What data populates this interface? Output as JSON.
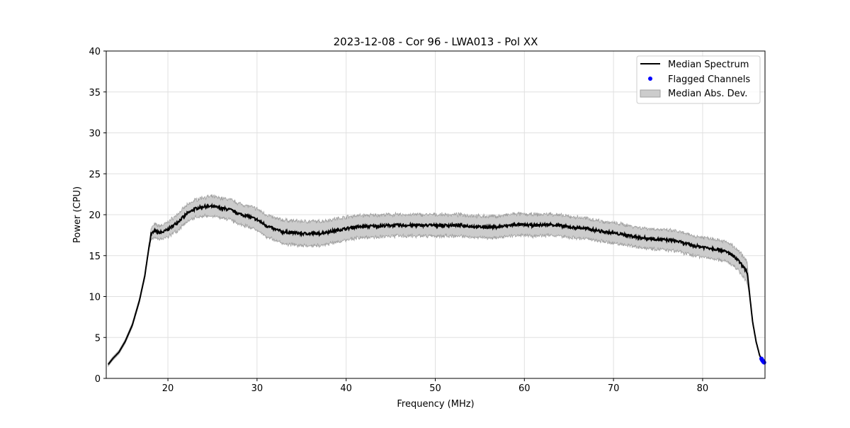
{
  "chart_data": {
    "type": "line",
    "title": "2023-12-08 - Cor 96 - LWA013 - Pol XX",
    "xlabel": "Frequency (MHz)",
    "ylabel": "Power (CPU)",
    "xlim": [
      13.08,
      87.0
    ],
    "ylim": [
      0,
      40
    ],
    "xticks": [
      20,
      30,
      40,
      50,
      60,
      70,
      80
    ],
    "yticks": [
      0,
      5,
      10,
      15,
      20,
      25,
      30,
      35,
      40
    ],
    "grid": true,
    "legend_position": "top-right",
    "legend": [
      "Median Spectrum",
      "Flagged Channels",
      "Median Abs. Dev."
    ],
    "colors": {
      "median": "#000000",
      "flagged": "#0000ff",
      "mad_fill": "#cccccc",
      "mad_edge": "#a0a0a0"
    },
    "series": [
      {
        "name": "Median Spectrum",
        "x": [
          13.3,
          13.8,
          14.5,
          15.2,
          16,
          16.8,
          17.4,
          17.8,
          18.1,
          18.5,
          19,
          19.5,
          20,
          21,
          22,
          23,
          24,
          25,
          26,
          27,
          28,
          29,
          30,
          31,
          32,
          33,
          35,
          37,
          39,
          41,
          43,
          45,
          50,
          53,
          55,
          57,
          59,
          61,
          63,
          65,
          67,
          69,
          71,
          73,
          75,
          77,
          79,
          81,
          82,
          83,
          84,
          85,
          85.3,
          85.6,
          86,
          86.4,
          86.8
        ],
        "y": [
          1.7,
          2.4,
          3.2,
          4.5,
          6.5,
          9.5,
          12.5,
          15.5,
          17.6,
          18.0,
          17.8,
          17.9,
          18.2,
          19.0,
          20.0,
          20.7,
          21.0,
          21.0,
          20.8,
          20.6,
          20.1,
          19.8,
          19.4,
          18.7,
          18.2,
          17.9,
          17.7,
          17.7,
          18.1,
          18.5,
          18.6,
          18.7,
          18.7,
          18.7,
          18.5,
          18.5,
          18.8,
          18.7,
          18.8,
          18.5,
          18.3,
          17.9,
          17.6,
          17.2,
          17.0,
          16.8,
          16.2,
          15.9,
          15.7,
          15.3,
          14.4,
          13.0,
          10.0,
          7.0,
          4.5,
          2.8,
          2.0
        ]
      },
      {
        "name": "Median Abs. Dev.",
        "x": [
          13.3,
          17.8,
          18.3,
          20,
          25,
          30,
          35,
          45,
          60,
          75,
          84,
          85,
          85.3,
          86.8
        ],
        "halfwidth": [
          0.2,
          0.3,
          0.8,
          0.9,
          1.2,
          1.3,
          1.5,
          1.3,
          1.3,
          1.2,
          1.2,
          1.3,
          0.2,
          0.1
        ]
      },
      {
        "name": "Flagged Channels",
        "x": [
          86.6,
          86.65,
          86.7,
          86.75,
          86.8,
          86.85,
          86.9
        ],
        "y": [
          2.4,
          2.3,
          2.2,
          2.15,
          2.05,
          2.0,
          1.95
        ]
      }
    ]
  }
}
